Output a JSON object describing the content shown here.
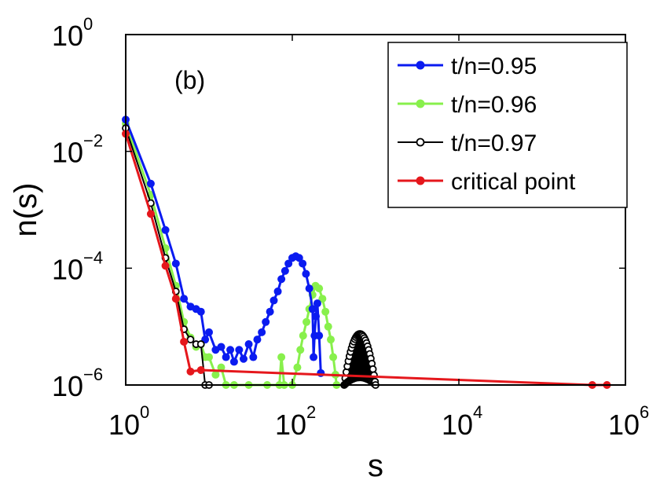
{
  "chart_data": {
    "type": "line",
    "xscale": "log",
    "yscale": "log",
    "xlim": [
      1,
      1000000
    ],
    "ylim": [
      1e-06,
      1
    ],
    "xlabel": "s",
    "ylabel": "n(s)",
    "annotation": "(b)",
    "x_ticks": [
      {
        "base": "10",
        "exp": "0",
        "value": 1
      },
      {
        "base": "10",
        "exp": "2",
        "value": 100
      },
      {
        "base": "10",
        "exp": "4",
        "value": 10000
      },
      {
        "base": "10",
        "exp": "6",
        "value": 1000000
      }
    ],
    "y_ticks": [
      {
        "base": "10",
        "exp": "0",
        "value": 1
      },
      {
        "base": "10",
        "exp": "−2",
        "value": 0.01
      },
      {
        "base": "10",
        "exp": "−4",
        "value": 0.0001
      },
      {
        "base": "10",
        "exp": "−6",
        "value": 1e-06
      }
    ],
    "legend_position": "top-right",
    "series": [
      {
        "name": "t/n=0.95",
        "color": "#0a1bf0",
        "marker": "filled",
        "points": [
          [
            1,
            0.035
          ],
          [
            2,
            0.0028
          ],
          [
            3,
            0.00045
          ],
          [
            4,
            0.00012
          ],
          [
            5,
            3e-05
          ],
          [
            6,
            2.2e-05
          ],
          [
            7,
            2e-05
          ],
          [
            8,
            1.8e-05
          ],
          [
            9,
            6e-06
          ],
          [
            10,
            8e-06
          ],
          [
            12,
            4e-06
          ],
          [
            14,
            4.5e-06
          ],
          [
            16,
            3e-06
          ],
          [
            18,
            4e-06
          ],
          [
            20,
            2.5e-06
          ],
          [
            23,
            4e-06
          ],
          [
            26,
            2.8e-06
          ],
          [
            30,
            5e-06
          ],
          [
            34,
            3e-06
          ],
          [
            38,
            6e-06
          ],
          [
            43,
            8e-06
          ],
          [
            48,
            1.2e-05
          ],
          [
            54,
            1.8e-05
          ],
          [
            60,
            2.8e-05
          ],
          [
            67,
            4e-05
          ],
          [
            74,
            6.5e-05
          ],
          [
            82,
            9e-05
          ],
          [
            90,
            0.00012
          ],
          [
            100,
            0.00015
          ],
          [
            110,
            0.00016
          ],
          [
            121,
            0.00015
          ],
          [
            133,
            0.00012
          ],
          [
            146,
            8e-05
          ],
          [
            160,
            4.5e-05
          ],
          [
            175,
            2e-05
          ],
          [
            180,
            3e-06
          ],
          [
            185,
            7e-06
          ],
          [
            192,
            1.5e-05
          ],
          [
            200,
            2.5e-05
          ],
          [
            210,
            7e-06
          ],
          [
            220,
            1.6e-06
          ]
        ]
      },
      {
        "name": "t/n=0.96",
        "color": "#88f04c",
        "marker": "filled",
        "points": [
          [
            1,
            0.03
          ],
          [
            2,
            0.0018
          ],
          [
            3,
            0.00022
          ],
          [
            4,
            5e-05
          ],
          [
            5,
            1.2e-05
          ],
          [
            6,
            6.5e-06
          ],
          [
            7,
            4.5e-06
          ],
          [
            8,
            5e-06
          ],
          [
            9,
            3e-06
          ],
          [
            10,
            3e-06
          ],
          [
            12,
            1.5e-06
          ],
          [
            14,
            2e-06
          ],
          [
            16,
            1e-06
          ],
          [
            20,
            1e-06
          ],
          [
            30,
            1e-06
          ],
          [
            50,
            1e-06
          ],
          [
            70,
            1e-06
          ],
          [
            74,
            3e-06
          ],
          [
            80,
            1e-06
          ],
          [
            100,
            1e-06
          ],
          [
            115,
            2e-06
          ],
          [
            125,
            4e-06
          ],
          [
            135,
            7e-06
          ],
          [
            148,
            1.2e-05
          ],
          [
            160,
            2e-05
          ],
          [
            175,
            3.5e-05
          ],
          [
            190,
            5e-05
          ],
          [
            210,
            4.5e-05
          ],
          [
            230,
            3e-05
          ],
          [
            250,
            1.8e-05
          ],
          [
            270,
            1e-05
          ],
          [
            290,
            6e-06
          ],
          [
            310,
            3e-06
          ],
          [
            330,
            1.5e-06
          ],
          [
            340,
            1e-06
          ]
        ]
      },
      {
        "name": "t/n=0.97",
        "color": "#000000",
        "marker": "open",
        "points": [
          [
            1,
            0.025
          ],
          [
            2,
            0.0013
          ],
          [
            3,
            0.00015
          ],
          [
            4,
            4e-05
          ],
          [
            5,
            9e-06
          ],
          [
            6,
            6e-06
          ],
          [
            7,
            5e-06
          ],
          [
            8,
            5e-06
          ],
          [
            9,
            1e-06
          ],
          [
            10,
            1e-06
          ]
        ]
      },
      {
        "name": "critical point",
        "color": "#e5171c",
        "marker": "filled",
        "points": [
          [
            1,
            0.02
          ],
          [
            2,
            0.00085
          ],
          [
            3,
            0.00011
          ],
          [
            4,
            3e-05
          ],
          [
            5,
            5.5e-06
          ],
          [
            6,
            1.7e-06
          ],
          [
            8,
            1.8e-06
          ],
          [
            400000,
            1e-06
          ],
          [
            600000,
            1e-06
          ]
        ]
      }
    ],
    "black_cluster": {
      "series": "t/n=0.97",
      "x_from": 420,
      "x_to": 1000,
      "y_peak": 7.5e-06,
      "y_base": 1e-06
    }
  }
}
